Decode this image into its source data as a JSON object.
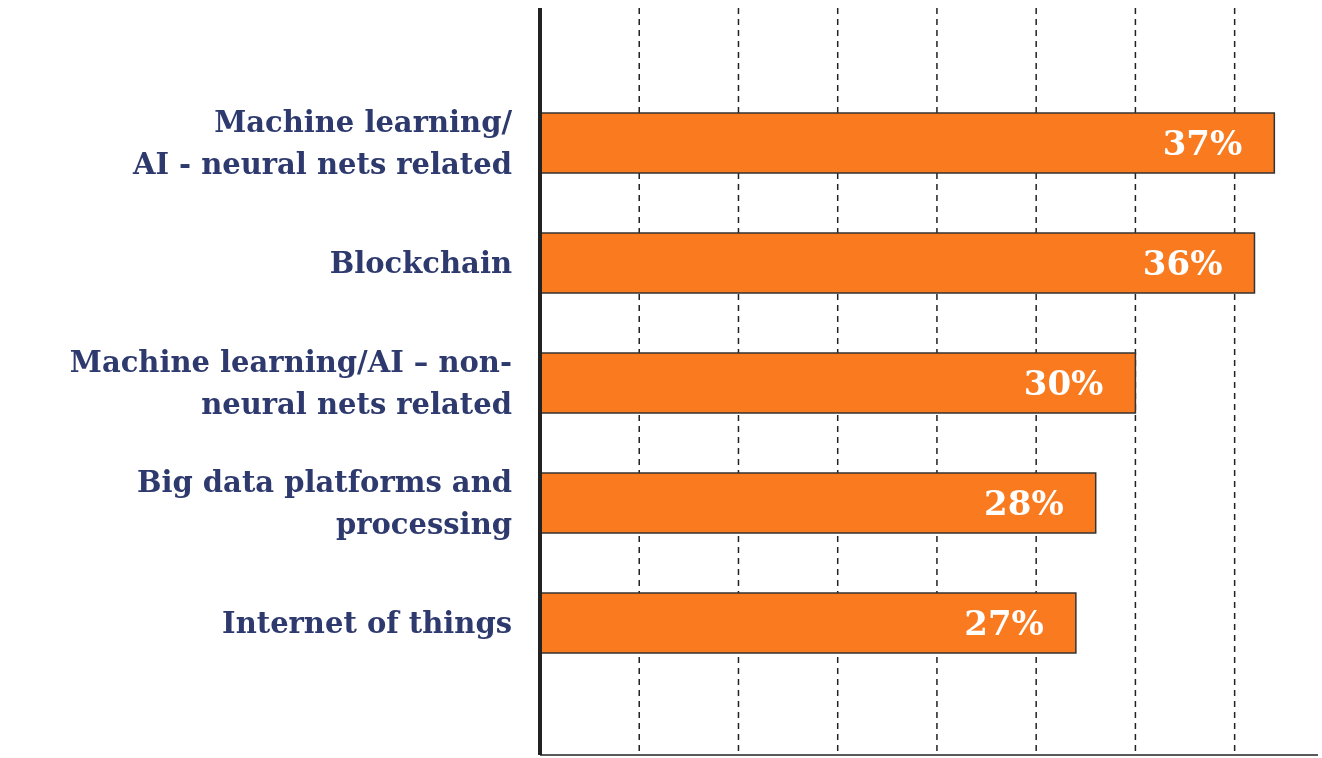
{
  "chart_data": {
    "type": "bar",
    "orientation": "horizontal",
    "categories": [
      "Machine learning/\nAI - neural nets related",
      "Blockchain",
      "Machine learning/AI – non-\nneural nets related",
      "Big data platforms and\nprocessing",
      "Internet of things"
    ],
    "values": [
      37,
      36,
      30,
      28,
      27
    ],
    "value_labels": [
      "37%",
      "36%",
      "30%",
      "28%",
      "27%"
    ],
    "color": "#f97a1f",
    "xlim": [
      0,
      39.2
    ],
    "xticks": [
      {
        "value": 0,
        "label": null
      },
      {
        "value": 5,
        "label": null
      },
      {
        "value": 10,
        "label": null
      },
      {
        "value": 15,
        "label": null
      },
      {
        "value": 20,
        "label": null
      },
      {
        "value": 25,
        "label": null
      },
      {
        "value": 30,
        "label": null
      },
      {
        "value": 35,
        "label": null
      }
    ],
    "grid": "x"
  }
}
